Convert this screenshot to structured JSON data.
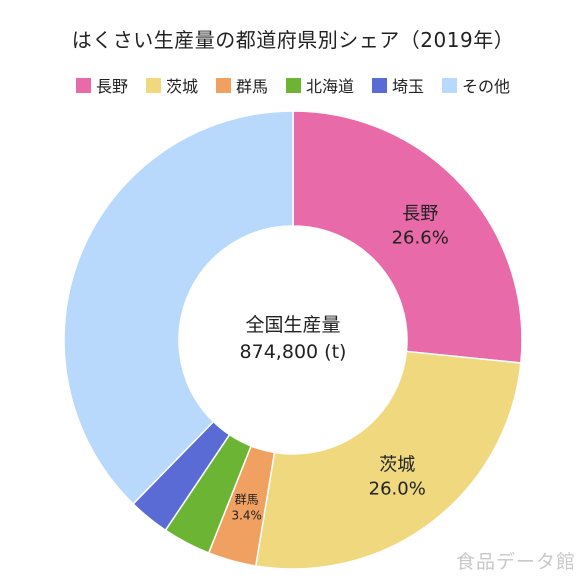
{
  "chart_data": {
    "type": "pie",
    "variant": "donut",
    "title": "はくさい生産量の都道府県別シェア（2019年）",
    "center_title": "全国生産量",
    "center_value": "874,800 (t)",
    "legend_position": "top",
    "slices": [
      {
        "name": "長野",
        "value": 26.6,
        "value_label": "26.6%",
        "color": "#e86aa8",
        "label_color": "#222222"
      },
      {
        "name": "茨城",
        "value": 26.0,
        "value_label": "26.0%",
        "color": "#efd87d",
        "label_color": "#222222"
      },
      {
        "name": "群馬",
        "value": 3.4,
        "value_label": "3.4%",
        "color": "#f0a060",
        "label_color": "#222222"
      },
      {
        "name": "北海道",
        "value": 3.4,
        "value_label": "",
        "color": "#6cb534",
        "label_color": "#222222"
      },
      {
        "name": "埼玉",
        "value": 2.9,
        "value_label": "",
        "color": "#5b6bd6",
        "label_color": "#222222"
      },
      {
        "name": "その他",
        "value": 37.7,
        "value_label": "",
        "color": "#b8d9fb",
        "label_color": "#222222"
      }
    ]
  },
  "watermark": "食品データ館"
}
